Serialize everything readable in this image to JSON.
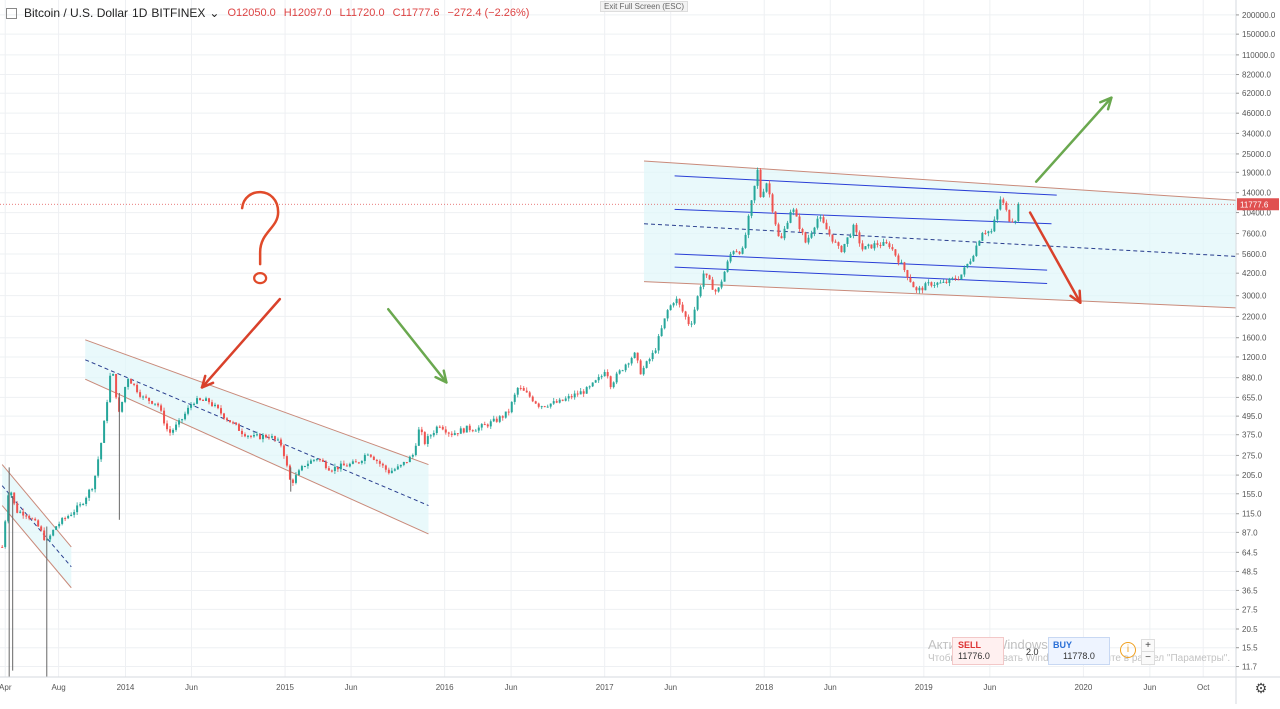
{
  "legend": {
    "symbol": "Bitcoin / U.S. Dollar",
    "interval": "1D",
    "exchange": "BITFINEX",
    "open": "O12050.0",
    "high": "H12097.0",
    "low": "L11720.0",
    "close": "C11777.6",
    "change": "−272.4 (−2.26%)"
  },
  "exit_fullscreen": "Exit Full Screen (ESC)",
  "trade": {
    "sell_label": "SELL",
    "sell_value": "11776.0",
    "spread": "2.0",
    "buy_label": "BUY",
    "buy_value": "11778.0"
  },
  "watermark": {
    "line1": "Активация Windows",
    "line2": "Чтобы активировать Windows, перейдите в раздел \"Параметры\"."
  },
  "icons": {
    "info": "info-icon",
    "plus": "plus-icon",
    "minus": "minus-icon",
    "settings": "gear-icon"
  },
  "colors": {
    "up": "#26a69a",
    "down": "#ef5350",
    "channel_fill": "#e0f7fa",
    "channel_border": "#c98a7a",
    "blue_line": "#2a3fd6",
    "green_arrow": "#6aa84f",
    "red_arrow": "#d9412b",
    "annotation_red": "#e04a2a"
  },
  "chart_data": {
    "type": "candlestick",
    "scale": "log",
    "ylim": [
      10,
      250000
    ],
    "xlim": [
      "2013-03-20",
      "2020-12-15"
    ],
    "last_price": 11777.6,
    "last_price_label": "11777.6",
    "y_ticks": [
      {
        "v": 200000,
        "label": "200000.0"
      },
      {
        "v": 150000,
        "label": "150000.0"
      },
      {
        "v": 110000,
        "label": "110000.0"
      },
      {
        "v": 82000,
        "label": "82000.0"
      },
      {
        "v": 62000,
        "label": "62000.0"
      },
      {
        "v": 46000,
        "label": "46000.0"
      },
      {
        "v": 34000,
        "label": "34000.0"
      },
      {
        "v": 25000,
        "label": "25000.0"
      },
      {
        "v": 19000,
        "label": "19000.0"
      },
      {
        "v": 14000,
        "label": "14000.0"
      },
      {
        "v": 10400,
        "label": "10400.0"
      },
      {
        "v": 7600,
        "label": "7600.0"
      },
      {
        "v": 5600,
        "label": "5600.0"
      },
      {
        "v": 4200,
        "label": "4200.0"
      },
      {
        "v": 3000,
        "label": "3000.0"
      },
      {
        "v": 2200,
        "label": "2200.0"
      },
      {
        "v": 1600,
        "label": "1600.0"
      },
      {
        "v": 1200,
        "label": "1200.0"
      },
      {
        "v": 880,
        "label": "880.0"
      },
      {
        "v": 655,
        "label": "655.0"
      },
      {
        "v": 495,
        "label": "495.0"
      },
      {
        "v": 375,
        "label": "375.0"
      },
      {
        "v": 275,
        "label": "275.0"
      },
      {
        "v": 205,
        "label": "205.0"
      },
      {
        "v": 155,
        "label": "155.0"
      },
      {
        "v": 115,
        "label": "115.0"
      },
      {
        "v": 87,
        "label": "87.0"
      },
      {
        "v": 64.5,
        "label": "64.5"
      },
      {
        "v": 48.5,
        "label": "48.5"
      },
      {
        "v": 36.5,
        "label": "36.5"
      },
      {
        "v": 27.5,
        "label": "27.5"
      },
      {
        "v": 20.5,
        "label": "20.5"
      },
      {
        "v": 15.5,
        "label": "15.5"
      },
      {
        "v": 11.7,
        "label": "11.7"
      }
    ],
    "x_ticks": [
      {
        "t": "2013-04-01",
        "label": "Apr"
      },
      {
        "t": "2013-08-01",
        "label": "Aug"
      },
      {
        "t": "2014-01-01",
        "label": "2014"
      },
      {
        "t": "2014-06-01",
        "label": "Jun"
      },
      {
        "t": "2015-01-01",
        "label": "2015"
      },
      {
        "t": "2015-06-01",
        "label": "Jun"
      },
      {
        "t": "2016-01-01",
        "label": "2016"
      },
      {
        "t": "2016-06-01",
        "label": "Jun"
      },
      {
        "t": "2017-01-01",
        "label": "2017"
      },
      {
        "t": "2017-06-01",
        "label": "Jun"
      },
      {
        "t": "2018-01-01",
        "label": "2018"
      },
      {
        "t": "2018-06-01",
        "label": "Jun"
      },
      {
        "t": "2019-01-01",
        "label": "2019"
      },
      {
        "t": "2019-06-01",
        "label": "Jun"
      },
      {
        "t": "2020-01-01",
        "label": "2020"
      },
      {
        "t": "2020-06-01",
        "label": "Jun"
      },
      {
        "t": "2020-10-01",
        "label": "Oct"
      }
    ],
    "price_path": [
      [
        "2013-03-25",
        70
      ],
      [
        "2013-04-10",
        180
      ],
      [
        "2013-04-25",
        120
      ],
      [
        "2013-05-20",
        115
      ],
      [
        "2013-06-15",
        95
      ],
      [
        "2013-07-05",
        75
      ],
      [
        "2013-07-25",
        95
      ],
      [
        "2013-08-20",
        110
      ],
      [
        "2013-09-20",
        130
      ],
      [
        "2013-10-20",
        180
      ],
      [
        "2013-11-10",
        380
      ],
      [
        "2013-11-30",
        1050
      ],
      [
        "2013-12-18",
        500
      ],
      [
        "2014-01-05",
        900
      ],
      [
        "2014-02-10",
        650
      ],
      [
        "2014-03-15",
        600
      ],
      [
        "2014-04-10",
        380
      ],
      [
        "2014-05-05",
        450
      ],
      [
        "2014-06-05",
        620
      ],
      [
        "2014-07-10",
        620
      ],
      [
        "2014-08-20",
        480
      ],
      [
        "2014-09-25",
        390
      ],
      [
        "2014-10-20",
        360
      ],
      [
        "2014-11-25",
        370
      ],
      [
        "2014-12-25",
        320
      ],
      [
        "2015-01-14",
        180
      ],
      [
        "2015-02-15",
        240
      ],
      [
        "2015-03-15",
        265
      ],
      [
        "2015-04-15",
        225
      ],
      [
        "2015-05-15",
        235
      ],
      [
        "2015-06-15",
        245
      ],
      [
        "2015-07-10",
        290
      ],
      [
        "2015-08-25",
        215
      ],
      [
        "2015-09-20",
        230
      ],
      [
        "2015-10-20",
        275
      ],
      [
        "2015-11-05",
        420
      ],
      [
        "2015-11-15",
        330
      ],
      [
        "2015-12-20",
        440
      ],
      [
        "2016-01-15",
        380
      ],
      [
        "2016-02-20",
        410
      ],
      [
        "2016-03-20",
        415
      ],
      [
        "2016-04-25",
        460
      ],
      [
        "2016-05-25",
        520
      ],
      [
        "2016-06-17",
        760
      ],
      [
        "2016-07-15",
        660
      ],
      [
        "2016-08-05",
        580
      ],
      [
        "2016-09-20",
        610
      ],
      [
        "2016-10-25",
        680
      ],
      [
        "2016-11-25",
        740
      ],
      [
        "2016-12-25",
        900
      ],
      [
        "2017-01-05",
        1050
      ],
      [
        "2017-01-12",
        780
      ],
      [
        "2017-02-20",
        1100
      ],
      [
        "2017-03-10",
        1250
      ],
      [
        "2017-03-25",
        950
      ],
      [
        "2017-04-25",
        1300
      ],
      [
        "2017-05-25",
        2400
      ],
      [
        "2017-06-12",
        2900
      ],
      [
        "2017-07-16",
        1900
      ],
      [
        "2017-08-15",
        4200
      ],
      [
        "2017-09-15",
        3100
      ],
      [
        "2017-10-20",
        6000
      ],
      [
        "2017-11-12",
        5800
      ],
      [
        "2017-12-17",
        19600
      ],
      [
        "2017-12-22",
        13000
      ],
      [
        "2018-01-07",
        16500
      ],
      [
        "2018-02-06",
        6500
      ],
      [
        "2018-03-05",
        11400
      ],
      [
        "2018-04-06",
        6600
      ],
      [
        "2018-05-05",
        9800
      ],
      [
        "2018-06-24",
        5800
      ],
      [
        "2018-07-24",
        8300
      ],
      [
        "2018-08-14",
        6000
      ],
      [
        "2018-09-15",
        6500
      ],
      [
        "2018-10-15",
        6400
      ],
      [
        "2018-11-20",
        4300
      ],
      [
        "2018-12-15",
        3200
      ],
      [
        "2019-01-15",
        3600
      ],
      [
        "2019-02-15",
        3600
      ],
      [
        "2019-03-25",
        4000
      ],
      [
        "2019-04-20",
        5300
      ],
      [
        "2019-05-15",
        7900
      ],
      [
        "2019-06-05",
        7800
      ],
      [
        "2019-06-26",
        13000
      ],
      [
        "2019-07-16",
        9400
      ],
      [
        "2019-07-30",
        9500
      ],
      [
        "2019-08-06",
        12000
      ],
      [
        "2019-08-12",
        11777.6
      ]
    ],
    "spike_wicks": [
      {
        "t": "2013-04-10",
        "low": 10,
        "high": 230
      },
      {
        "t": "2013-04-18",
        "low": 11,
        "high": 150
      },
      {
        "t": "2013-07-05",
        "low": 10,
        "high": 95
      },
      {
        "t": "2013-12-18",
        "low": 105,
        "high": 700
      },
      {
        "t": "2015-01-14",
        "low": 160,
        "high": 230
      }
    ],
    "channels": [
      {
        "fill": true,
        "upper": [
          [
            "2013-03-25",
            240
          ],
          [
            "2013-08-30",
            70
          ]
        ],
        "lower": [
          [
            "2013-03-25",
            130
          ],
          [
            "2013-08-30",
            38
          ]
        ],
        "mid": [
          [
            "2013-03-25",
            175
          ],
          [
            "2013-08-30",
            52
          ]
        ]
      },
      {
        "fill": true,
        "upper": [
          [
            "2013-10-01",
            1550
          ],
          [
            "2015-11-25",
            240
          ]
        ],
        "lower": [
          [
            "2013-10-01",
            860
          ],
          [
            "2015-11-25",
            85
          ]
        ],
        "mid": [
          [
            "2013-10-01",
            1150
          ],
          [
            "2015-11-25",
            130
          ]
        ]
      },
      {
        "fill": true,
        "upper": [
          [
            "2017-04-01",
            22500
          ],
          [
            "2020-12-15",
            12500
          ]
        ],
        "lower": [
          [
            "2017-04-01",
            3700
          ],
          [
            "2020-12-15",
            2500
          ]
        ],
        "mid": [
          [
            "2017-04-01",
            8800
          ],
          [
            "2020-12-15",
            5400
          ]
        ]
      }
    ],
    "blue_lines": [
      [
        [
          "2017-06-10",
          18000
        ],
        [
          "2019-11-01",
          13500
        ]
      ],
      [
        [
          "2017-06-10",
          10900
        ],
        [
          "2019-10-20",
          8800
        ]
      ],
      [
        [
          "2017-06-10",
          5600
        ],
        [
          "2019-10-10",
          4400
        ]
      ],
      [
        [
          "2017-06-10",
          4600
        ],
        [
          "2019-10-10",
          3600
        ]
      ]
    ],
    "arrows": [
      {
        "color": "red",
        "from": [
          "2014-12-20",
          2850
        ],
        "to": [
          "2014-06-25",
          760
        ]
      },
      {
        "color": "green",
        "from": [
          "2015-08-25",
          2450
        ],
        "to": [
          "2016-01-05",
          820
        ]
      },
      {
        "color": "green",
        "from": [
          "2019-09-15",
          16500
        ],
        "to": [
          "2020-03-05",
          58000
        ]
      },
      {
        "color": "red",
        "from": [
          "2019-09-01",
          10400
        ],
        "to": [
          "2019-12-25",
          2700
        ]
      }
    ],
    "question_mark": {
      "t": "2014-11-05",
      "v": 3900
    }
  }
}
